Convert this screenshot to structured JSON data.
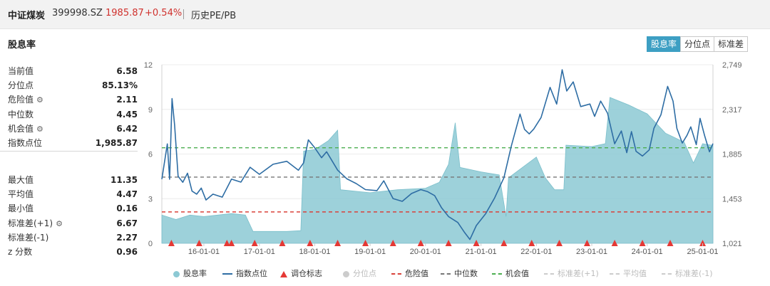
{
  "header": {
    "name": "中证煤炭",
    "code": "399998.SZ",
    "price": "1985.87",
    "change": "+0.54%",
    "page_title": "历史PE/PB"
  },
  "section_title": "股息率",
  "tabs": [
    {
      "label": "股息率",
      "active": true
    },
    {
      "label": "分位点",
      "active": false
    },
    {
      "label": "标准差",
      "active": false
    }
  ],
  "stats_top": [
    {
      "label": "当前值",
      "value": "6.58",
      "gear": false
    },
    {
      "label": "分位点",
      "value": "85.13%",
      "gear": false
    },
    {
      "label": "危险值",
      "value": "2.11",
      "gear": true
    },
    {
      "label": "中位数",
      "value": "4.45",
      "gear": false
    },
    {
      "label": "机会值",
      "value": "6.42",
      "gear": true
    },
    {
      "label": "指数点位",
      "value": "1,985.87",
      "gear": false
    }
  ],
  "stats_bottom": [
    {
      "label": "最大值",
      "value": "11.35",
      "gear": false
    },
    {
      "label": "平均值",
      "value": "4.47",
      "gear": false
    },
    {
      "label": "最小值",
      "value": "0.16",
      "gear": false
    },
    {
      "label": "标准差(+1)",
      "value": "6.67",
      "gear": true
    },
    {
      "label": "标准差(-1)",
      "value": "2.27",
      "gear": false
    },
    {
      "label": "z 分数",
      "value": "0.96",
      "gear": false
    }
  ],
  "legend": [
    {
      "label": "股息率",
      "marker": "dot",
      "color": "#8cc9d4",
      "enabled": true
    },
    {
      "label": "指数点位",
      "marker": "line",
      "color": "#2e6da4",
      "enabled": true
    },
    {
      "label": "调仓标志",
      "marker": "triangle",
      "color": "#e53935",
      "enabled": true
    },
    {
      "label": "分位点",
      "marker": "dot",
      "color": "#cccccc",
      "enabled": false
    },
    {
      "label": "危险值",
      "marker": "dash",
      "color": "#d9423a",
      "enabled": true
    },
    {
      "label": "中位数",
      "marker": "dash",
      "color": "#777777",
      "enabled": true
    },
    {
      "label": "机会值",
      "marker": "dash",
      "color": "#4caf50",
      "enabled": true
    },
    {
      "label": "标准差(+1)",
      "marker": "dash",
      "color": "#cccccc",
      "enabled": false
    },
    {
      "label": "平均值",
      "marker": "dash",
      "color": "#cccccc",
      "enabled": false
    },
    {
      "label": "标准差(-1)",
      "marker": "dash",
      "color": "#cccccc",
      "enabled": false
    }
  ],
  "chart_data": {
    "type": "area",
    "x_range": [
      "2015-03-30",
      "2025-03-10"
    ],
    "x_tick_labels": [
      "16-01-01",
      "17-01-01",
      "18-01-01",
      "19-01-01",
      "20-01-01",
      "21-01-01",
      "22-01-01",
      "23-01-01",
      "24-01-01",
      "25-01-01"
    ],
    "y_left": {
      "min": 0,
      "max": 12,
      "ticks": [
        "0",
        "3",
        "6",
        "9",
        "12"
      ]
    },
    "y_right": {
      "min": 1021,
      "max": 2749,
      "ticks": [
        "1,021",
        "1,453",
        "1,885",
        "2,317",
        "2,749"
      ]
    },
    "reference_lines": [
      {
        "name": "机会值",
        "value": 6.42,
        "color": "#4caf50"
      },
      {
        "name": "中位数",
        "value": 4.45,
        "color": "#777777"
      },
      {
        "name": "危险值",
        "value": 2.11,
        "color": "#d9423a"
      }
    ],
    "series": [
      {
        "name": "股息率",
        "axis": "left",
        "color": "#8cc9d4",
        "points": [
          [
            "2015-03-30",
            1.9
          ],
          [
            "2015-07-01",
            1.6
          ],
          [
            "2015-10-01",
            1.9
          ],
          [
            "2016-01-01",
            1.8
          ],
          [
            "2016-04-01",
            1.9
          ],
          [
            "2016-07-01",
            2.0
          ],
          [
            "2016-10-01",
            1.9
          ],
          [
            "2016-11-20",
            0.8
          ],
          [
            "2017-01-01",
            0.8
          ],
          [
            "2017-07-01",
            0.8
          ],
          [
            "2017-10-01",
            0.85
          ],
          [
            "2017-10-20",
            6.2
          ],
          [
            "2018-01-01",
            6.3
          ],
          [
            "2018-04-01",
            6.9
          ],
          [
            "2018-06-01",
            7.6
          ],
          [
            "2018-06-20",
            3.6
          ],
          [
            "2019-01-01",
            3.4
          ],
          [
            "2019-07-01",
            3.6
          ],
          [
            "2020-01-01",
            3.7
          ],
          [
            "2020-04-01",
            4.1
          ],
          [
            "2020-06-01",
            5.3
          ],
          [
            "2020-07-15",
            8.1
          ],
          [
            "2020-08-15",
            5.1
          ],
          [
            "2021-01-01",
            4.8
          ],
          [
            "2021-05-01",
            4.6
          ],
          [
            "2021-06-15",
            1.8
          ],
          [
            "2021-07-01",
            4.4
          ],
          [
            "2022-01-01",
            5.8
          ],
          [
            "2022-03-01",
            4.4
          ],
          [
            "2022-05-01",
            3.6
          ],
          [
            "2022-07-01",
            3.6
          ],
          [
            "2022-07-15",
            6.6
          ],
          [
            "2023-01-01",
            6.5
          ],
          [
            "2023-04-01",
            6.7
          ],
          [
            "2023-05-01",
            9.8
          ],
          [
            "2023-09-01",
            9.3
          ],
          [
            "2024-01-01",
            8.7
          ],
          [
            "2024-05-01",
            7.4
          ],
          [
            "2024-09-01",
            6.8
          ],
          [
            "2024-11-01",
            5.4
          ],
          [
            "2025-01-01",
            6.7
          ],
          [
            "2025-03-10",
            6.58
          ]
        ]
      },
      {
        "name": "指数点位",
        "axis": "right",
        "color": "#2e6da4",
        "points": [
          [
            "2015-03-30",
            1641
          ],
          [
            "2015-05-05",
            1983
          ],
          [
            "2015-05-20",
            1641
          ],
          [
            "2015-06-05",
            2421
          ],
          [
            "2015-06-22",
            2166
          ],
          [
            "2015-07-15",
            1670
          ],
          [
            "2015-08-15",
            1612
          ],
          [
            "2015-09-15",
            1699
          ],
          [
            "2015-10-15",
            1526
          ],
          [
            "2015-11-15",
            1497
          ],
          [
            "2015-12-15",
            1555
          ],
          [
            "2016-01-15",
            1440
          ],
          [
            "2016-03-01",
            1497
          ],
          [
            "2016-05-01",
            1468
          ],
          [
            "2016-07-01",
            1642
          ],
          [
            "2016-09-01",
            1613
          ],
          [
            "2016-11-01",
            1757
          ],
          [
            "2017-01-01",
            1689
          ],
          [
            "2017-04-01",
            1786
          ],
          [
            "2017-07-01",
            1815
          ],
          [
            "2017-09-15",
            1728
          ],
          [
            "2017-10-20",
            1800
          ],
          [
            "2017-11-20",
            2022
          ],
          [
            "2018-01-01",
            1945
          ],
          [
            "2018-02-15",
            1849
          ],
          [
            "2018-03-20",
            1907
          ],
          [
            "2018-06-01",
            1729
          ],
          [
            "2018-08-01",
            1645
          ],
          [
            "2018-10-01",
            1599
          ],
          [
            "2018-12-01",
            1541
          ],
          [
            "2019-02-15",
            1531
          ],
          [
            "2019-04-01",
            1626
          ],
          [
            "2019-06-01",
            1454
          ],
          [
            "2019-08-01",
            1427
          ],
          [
            "2019-10-01",
            1503
          ],
          [
            "2019-12-01",
            1541
          ],
          [
            "2020-01-15",
            1521
          ],
          [
            "2020-03-01",
            1483
          ],
          [
            "2020-04-15",
            1367
          ],
          [
            "2020-06-01",
            1280
          ],
          [
            "2020-08-01",
            1223
          ],
          [
            "2020-09-15",
            1125
          ],
          [
            "2020-10-20",
            1058
          ],
          [
            "2020-12-01",
            1193
          ],
          [
            "2021-02-01",
            1309
          ],
          [
            "2021-04-01",
            1461
          ],
          [
            "2021-06-01",
            1656
          ],
          [
            "2021-07-20",
            1963
          ],
          [
            "2021-09-15",
            2272
          ],
          [
            "2021-10-15",
            2124
          ],
          [
            "2021-11-15",
            2080
          ],
          [
            "2021-12-15",
            2127
          ],
          [
            "2022-02-01",
            2238
          ],
          [
            "2022-04-01",
            2530
          ],
          [
            "2022-05-15",
            2368
          ],
          [
            "2022-06-20",
            2701
          ],
          [
            "2022-07-20",
            2495
          ],
          [
            "2022-09-01",
            2583
          ],
          [
            "2022-10-20",
            2344
          ],
          [
            "2022-12-20",
            2369
          ],
          [
            "2023-01-20",
            2249
          ],
          [
            "2023-03-01",
            2397
          ],
          [
            "2023-04-15",
            2281
          ],
          [
            "2023-06-01",
            1984
          ],
          [
            "2023-07-15",
            2108
          ],
          [
            "2023-08-20",
            1898
          ],
          [
            "2023-09-20",
            2102
          ],
          [
            "2023-10-20",
            1912
          ],
          [
            "2023-12-01",
            1866
          ],
          [
            "2024-01-15",
            1925
          ],
          [
            "2024-02-15",
            2134
          ],
          [
            "2024-04-01",
            2264
          ],
          [
            "2024-05-15",
            2540
          ],
          [
            "2024-06-20",
            2397
          ],
          [
            "2024-07-15",
            2133
          ],
          [
            "2024-08-20",
            1991
          ],
          [
            "2024-09-20",
            2066
          ],
          [
            "2024-10-15",
            2148
          ],
          [
            "2024-11-20",
            1976
          ],
          [
            "2024-12-15",
            2230
          ],
          [
            "2025-01-15",
            2058
          ],
          [
            "2025-02-15",
            1907
          ],
          [
            "2025-03-10",
            1986
          ]
        ]
      }
    ],
    "rebalance_markers": [
      "2015-06-01",
      "2015-12-01",
      "2016-06-01",
      "2016-07-01",
      "2016-12-01",
      "2017-06-01",
      "2017-12-01",
      "2018-06-01",
      "2018-12-01",
      "2019-06-01",
      "2019-12-01",
      "2020-06-01",
      "2020-12-01",
      "2021-06-01",
      "2021-12-01",
      "2022-06-01",
      "2022-12-01",
      "2023-06-01",
      "2023-12-01",
      "2024-06-01",
      "2025-01-01"
    ]
  }
}
